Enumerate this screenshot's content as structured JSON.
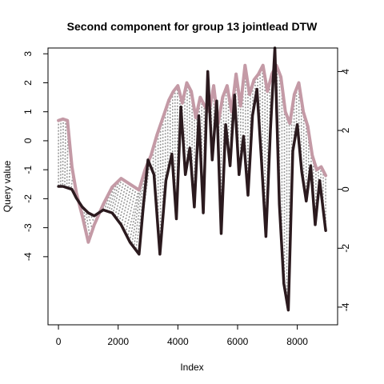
{
  "chart_data": {
    "type": "line",
    "title": "Second component for group 13 jointlead DTW",
    "xlabel": "Index",
    "ylabel": "Query value",
    "xlim": [
      -350,
      9350
    ],
    "ylim_left": [
      -6.35,
      3.2
    ],
    "ylim_right": [
      -4.6,
      4.8
    ],
    "x_ticks": [
      0,
      2000,
      4000,
      6000,
      8000
    ],
    "x_tick_labels": [
      "0",
      "2000",
      "4000",
      "6000",
      "8000"
    ],
    "y_left_ticks": [
      -4,
      -3,
      -2,
      -1,
      0,
      1,
      2,
      3
    ],
    "y_left_tick_labels": [
      "-4",
      "-3",
      "-2",
      "-1",
      "0",
      "1",
      "2",
      "3"
    ],
    "y_right_ticks": [
      -4,
      -2,
      0,
      2,
      4
    ],
    "y_right_tick_labels": [
      "-4",
      "-2",
      "0",
      "2",
      "4"
    ],
    "grid": false,
    "colors": {
      "query": "#c49aa6",
      "reference": "#2b1a1e",
      "alignment": "#999999"
    },
    "series": [
      {
        "axis": "left",
        "x": [
          0,
          150,
          300,
          450,
          600,
          800,
          1000,
          1200,
          1500,
          1800,
          2100,
          2400,
          2700,
          2900,
          3100,
          3300,
          3500,
          3700,
          3850,
          4000,
          4150,
          4300,
          4450,
          4600,
          4750,
          4900,
          5050,
          5200,
          5350,
          5500,
          5650,
          5800,
          5950,
          6100,
          6250,
          6400,
          6550,
          6700,
          6850,
          7000,
          7150,
          7300,
          7450,
          7600,
          7750,
          7900,
          8050,
          8200,
          8350,
          8500,
          8650,
          8800,
          8950
        ],
        "y": [
          0.7,
          0.75,
          0.7,
          -0.9,
          -1.8,
          -2.6,
          -3.5,
          -2.9,
          -2.2,
          -1.6,
          -1.3,
          -1.5,
          -1.7,
          -1.0,
          -0.5,
          0.2,
          0.8,
          1.4,
          1.7,
          1.9,
          1.3,
          2.0,
          1.7,
          0.8,
          1.5,
          1.2,
          1.0,
          1.9,
          0.6,
          1.5,
          1.9,
          1.0,
          2.3,
          1.2,
          2.6,
          1.6,
          2.1,
          2.3,
          2.6,
          1.7,
          2.3,
          2.6,
          2.2,
          1.0,
          0.6,
          1.6,
          2.0,
          1.0,
          0.5,
          -0.5,
          -1.0,
          -0.9,
          -1.2
        ]
      },
      {
        "axis": "right",
        "x": [
          0,
          150,
          300,
          450,
          600,
          800,
          1000,
          1200,
          1500,
          1800,
          2100,
          2400,
          2700,
          2850,
          3000,
          3200,
          3400,
          3600,
          3800,
          3950,
          4100,
          4250,
          4400,
          4550,
          4700,
          4850,
          5000,
          5150,
          5300,
          5450,
          5600,
          5750,
          5900,
          6050,
          6200,
          6350,
          6500,
          6650,
          6800,
          6950,
          7100,
          7250,
          7400,
          7550,
          7700,
          7850,
          8000,
          8150,
          8300,
          8450,
          8600,
          8750,
          8950
        ],
        "y": [
          0.1,
          0.1,
          0.05,
          0.0,
          -0.3,
          -0.6,
          -0.8,
          -0.9,
          -0.7,
          -0.8,
          -1.2,
          -1.8,
          -2.2,
          -0.5,
          1.0,
          0.5,
          -2.2,
          0.3,
          1.2,
          -1.0,
          2.8,
          0.5,
          1.4,
          -0.6,
          2.5,
          -0.8,
          4.0,
          1.0,
          3.0,
          -1.5,
          2.2,
          0.8,
          3.2,
          0.5,
          1.8,
          -0.2,
          2.5,
          3.4,
          1.0,
          -1.6,
          2.0,
          4.8,
          -0.5,
          -3.2,
          -4.1,
          1.3,
          2.2,
          0.6,
          -0.4,
          0.8,
          -1.2,
          0.3,
          -1.4
        ]
      }
    ]
  }
}
